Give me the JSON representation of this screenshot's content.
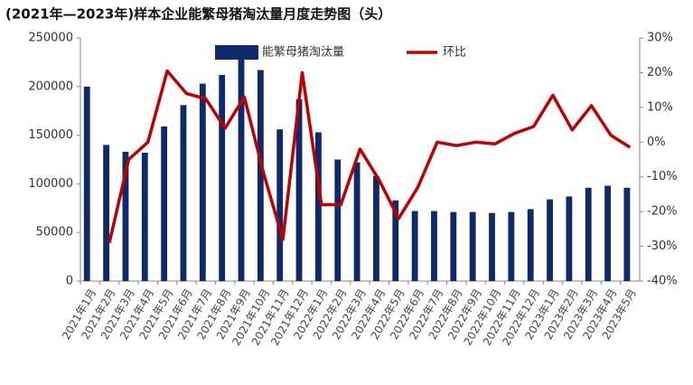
{
  "chart_data": {
    "type": "bar-line",
    "title": "(2021年—2023年)样本企业能繁母猪淘汰量月度走势图（头）",
    "categories": [
      "2021年1月",
      "2021年2月",
      "2021年3月",
      "2021年4月",
      "2021年5月",
      "2021年6月",
      "2021年7月",
      "2021年8月",
      "2021年9月",
      "2021年10月",
      "2021年11月",
      "2021年12月",
      "2022年1月",
      "2022年2月",
      "2022年3月",
      "2022年4月",
      "2022年5月",
      "2022年6月",
      "2022年7月",
      "2022年8月",
      "2022年9月",
      "2022年10月",
      "2022年11月",
      "2022年12月",
      "2023年1月",
      "2023年2月",
      "2023年3月",
      "2023年4月",
      "2023年5月"
    ],
    "series": [
      {
        "name": "能繁母猪淘汰量",
        "type": "bar",
        "color": "#0f2a6b",
        "values": [
          200000,
          140000,
          133000,
          132000,
          159000,
          181000,
          203000,
          212000,
          237000,
          217000,
          156000,
          187000,
          153000,
          125000,
          122000,
          108000,
          83000,
          72000,
          72000,
          71000,
          71000,
          70000,
          71000,
          74000,
          84000,
          87000,
          96000,
          98000,
          96000
        ]
      },
      {
        "name": "环比",
        "type": "line",
        "color": "#c00000",
        "axis": "y2",
        "values": [
          null,
          -29,
          -5,
          0,
          20.5,
          14,
          12.5,
          4,
          13,
          -9,
          -28,
          20,
          -18,
          -18,
          -2,
          -11,
          -22,
          -13,
          0,
          -1,
          0,
          -0.5,
          2.5,
          4.5,
          13.5,
          3.5,
          10.5,
          2,
          -1.5
        ]
      }
    ],
    "ylim": [
      0,
      250000
    ],
    "yticks": [
      0,
      50000,
      100000,
      150000,
      200000,
      250000
    ],
    "y2lim": [
      -40,
      30
    ],
    "y2ticks": [
      {
        "value": -40,
        "label": "-40%"
      },
      {
        "value": -30,
        "label": "-30%"
      },
      {
        "value": -20,
        "label": "-20%"
      },
      {
        "value": -10,
        "label": "-10%"
      },
      {
        "value": 0,
        "label": "0%"
      },
      {
        "value": 10,
        "label": "10%"
      },
      {
        "value": 20,
        "label": "20%"
      },
      {
        "value": 30,
        "label": "30%"
      }
    ]
  }
}
